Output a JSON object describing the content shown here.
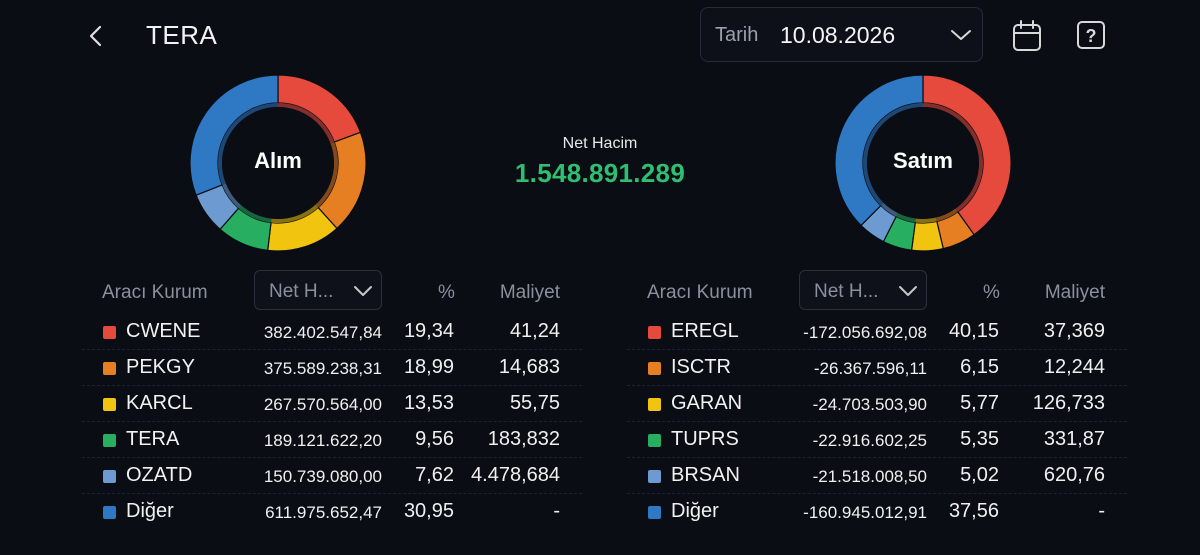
{
  "header": {
    "back_icon": "chevron-left-icon",
    "title": "TERA",
    "date_label": "Tarih",
    "date_value": "10.08.2026",
    "dropdown_icon": "chevron-down-icon",
    "calendar_icon": "calendar-icon",
    "help_icon": "help-icon"
  },
  "summary": {
    "buy_label": "Alım",
    "sell_label": "Satım",
    "net_volume_label": "Net Hacim",
    "net_volume_value": "1.548.891.289",
    "net_volume_color": "#2fbf71"
  },
  "colors": {
    "red": "#e64a3c",
    "orange": "#e67e22",
    "yellow": "#f1c40f",
    "green": "#27ae60",
    "lightblue": "#6d9bd1",
    "blue": "#2f78c4"
  },
  "buy_table": {
    "col_broker": "Aracı Kurum",
    "col_select": "Net H...",
    "col_pct": "%",
    "col_cost": "Maliyet",
    "rows": [
      {
        "name": "CWENE",
        "color": "#e64a3c",
        "volume": "382.402.547,84",
        "pct": "19,34",
        "pct_value": 19.34,
        "cost": "41,24"
      },
      {
        "name": "PEKGY",
        "color": "#e67e22",
        "volume": "375.589.238,31",
        "pct": "18,99",
        "pct_value": 18.99,
        "cost": "14,683"
      },
      {
        "name": "KARCL",
        "color": "#f1c40f",
        "volume": "267.570.564,00",
        "pct": "13,53",
        "pct_value": 13.53,
        "cost": "55,75"
      },
      {
        "name": "TERA",
        "color": "#27ae60",
        "volume": "189.121.622,20",
        "pct": "9,56",
        "pct_value": 9.56,
        "cost": "183,832"
      },
      {
        "name": "OZATD",
        "color": "#6d9bd1",
        "volume": "150.739.080,00",
        "pct": "7,62",
        "pct_value": 7.62,
        "cost": "4.478,684"
      },
      {
        "name": "Diğer",
        "color": "#2f78c4",
        "volume": "611.975.652,47",
        "pct": "30,95",
        "pct_value": 30.95,
        "cost": "-"
      }
    ]
  },
  "sell_table": {
    "col_broker": "Aracı Kurum",
    "col_select": "Net H...",
    "col_pct": "%",
    "col_cost": "Maliyet",
    "rows": [
      {
        "name": "EREGL",
        "color": "#e64a3c",
        "volume": "-172.056.692,08",
        "pct": "40,15",
        "pct_value": 40.15,
        "cost": "37,369"
      },
      {
        "name": "ISCTR",
        "color": "#e67e22",
        "volume": "-26.367.596,11",
        "pct": "6,15",
        "pct_value": 6.15,
        "cost": "12,244"
      },
      {
        "name": "GARAN",
        "color": "#f1c40f",
        "volume": "-24.703.503,90",
        "pct": "5,77",
        "pct_value": 5.77,
        "cost": "126,733"
      },
      {
        "name": "TUPRS",
        "color": "#27ae60",
        "volume": "-22.916.602,25",
        "pct": "5,35",
        "pct_value": 5.35,
        "cost": "331,87"
      },
      {
        "name": "BRSAN",
        "color": "#6d9bd1",
        "volume": "-21.518.008,50",
        "pct": "5,02",
        "pct_value": 5.02,
        "cost": "620,76"
      },
      {
        "name": "Diğer",
        "color": "#2f78c4",
        "volume": "-160.945.012,91",
        "pct": "37,56",
        "pct_value": 37.56,
        "cost": "-"
      }
    ]
  }
}
